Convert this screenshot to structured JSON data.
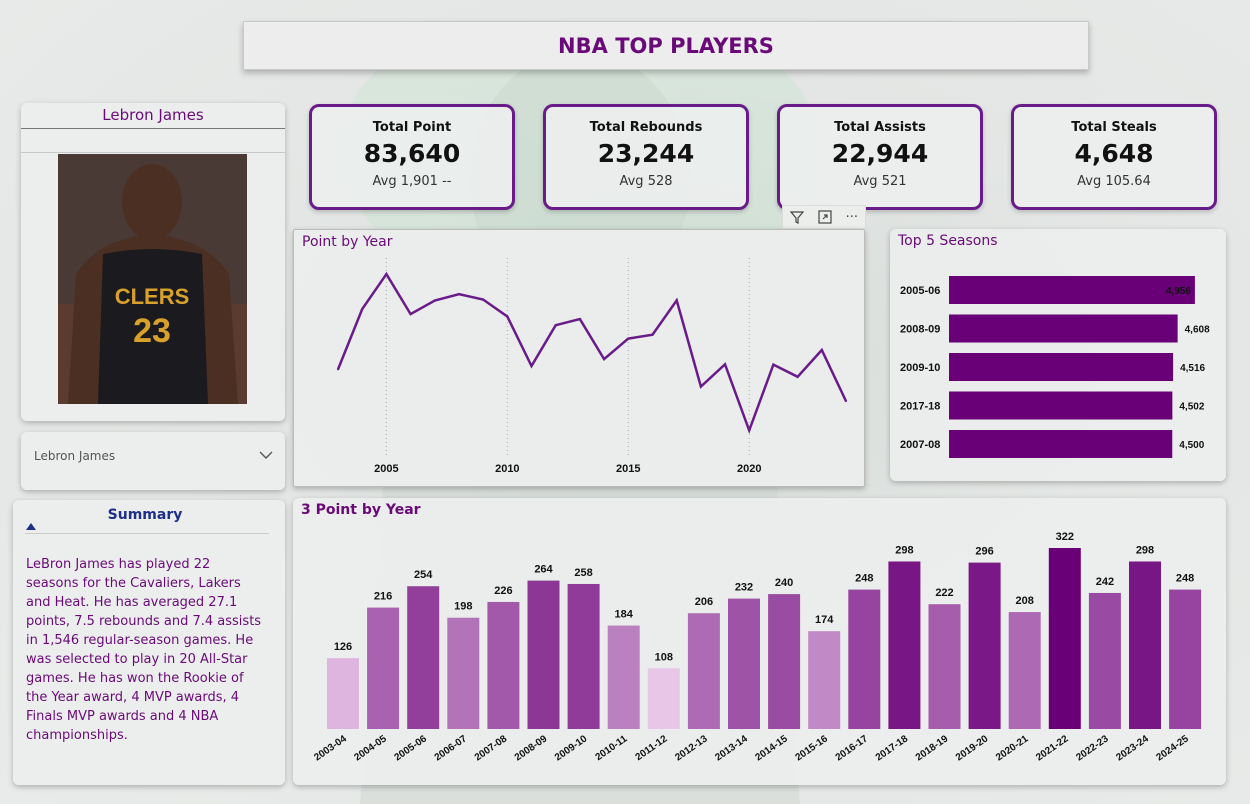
{
  "header": {
    "title": "NBA TOP PLAYERS"
  },
  "player_card": {
    "name": "Lebron James",
    "jersey_team": "CLERS",
    "jersey_number": "23"
  },
  "slicer": {
    "selected": "Lebron James"
  },
  "kpis": [
    {
      "label": "Total Point",
      "value": "83,640",
      "avg": "Avg 1,901 --"
    },
    {
      "label": "Total Rebounds",
      "value": "23,244",
      "avg": "Avg 528"
    },
    {
      "label": "Total Assists",
      "value": "22,944",
      "avg": "Avg 521"
    },
    {
      "label": "Total Steals",
      "value": "4,648",
      "avg": "Avg 105.64"
    }
  ],
  "toolbar": {
    "filter_icon": "filter-icon",
    "focus_icon": "focus-mode-icon",
    "more_label": "···"
  },
  "summary": {
    "title": "Summary",
    "text": "LeBron James has played 22 seasons for the Cavaliers, Lakers and Heat. He has averaged 27.1 points, 7.5 rebounds and 7.4 assists in 1,546 regular-season games. He was selected to play in 20 All-Star games. He has won the Rookie of the Year award, 4 MVP awards, 4 Finals MVP awards and 4 NBA championships."
  },
  "colors": {
    "accent": "#6a0a78",
    "bar_dark": "#6a0078",
    "line": "#6a1b8a"
  },
  "chart_data": [
    {
      "type": "line",
      "title": "Point by Year",
      "x_tick_labels": [
        "2005",
        "2010",
        "2015",
        "2020"
      ],
      "x": [
        2003,
        2004,
        2005,
        2006,
        2007,
        2008,
        2009,
        2010,
        2011,
        2012,
        2013,
        2014,
        2015,
        2016,
        2017,
        2018,
        2019,
        2020,
        2021,
        2022,
        2023,
        2024
      ],
      "values": [
        1654,
        2175,
        2478,
        2132,
        2250,
        2304,
        2258,
        2111,
        1683,
        2036,
        2089,
        1743,
        1920,
        1954,
        2251,
        1505,
        1698,
        1126,
        1695,
        1590,
        1822,
        1380
      ],
      "ylim": [
        1000,
        2600
      ],
      "grid": "vertical dotted"
    },
    {
      "type": "bar",
      "orientation": "horizontal",
      "title": "Top 5 Seasons",
      "categories": [
        "2005-06",
        "2008-09",
        "2009-10",
        "2017-18",
        "2007-08"
      ],
      "values": [
        4956,
        4608,
        4516,
        4502,
        4500
      ],
      "data_labels": [
        "4,956",
        "4,608",
        "4,516",
        "4,502",
        "4,500"
      ],
      "xlim": [
        0,
        5200
      ]
    },
    {
      "type": "bar",
      "title": "3 Point by Year",
      "categories": [
        "2003-04",
        "2004-05",
        "2005-06",
        "2006-07",
        "2007-08",
        "2008-09",
        "2009-10",
        "2010-11",
        "2011-12",
        "2012-13",
        "2013-14",
        "2014-15",
        "2015-16",
        "2016-17",
        "2017-18",
        "2018-19",
        "2019-20",
        "2020-21",
        "2021-22",
        "2022-23",
        "2023-24",
        "2024-25"
      ],
      "values": [
        126,
        216,
        254,
        198,
        226,
        264,
        258,
        184,
        108,
        206,
        232,
        240,
        174,
        248,
        298,
        222,
        296,
        208,
        322,
        242,
        298,
        248
      ],
      "ylim": [
        0,
        330
      ],
      "color_scale": "value-based purple gradient (light to dark)"
    }
  ]
}
